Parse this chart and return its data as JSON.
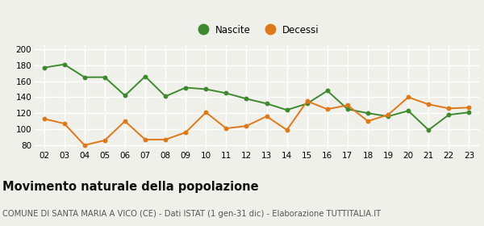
{
  "years": [
    "02",
    "03",
    "04",
    "05",
    "06",
    "07",
    "08",
    "09",
    "10",
    "11",
    "12",
    "13",
    "14",
    "15",
    "16",
    "17",
    "18",
    "19",
    "20",
    "21",
    "22",
    "23"
  ],
  "nascite": [
    177,
    181,
    165,
    165,
    142,
    166,
    141,
    152,
    150,
    145,
    138,
    132,
    124,
    132,
    148,
    125,
    120,
    116,
    123,
    99,
    118,
    121
  ],
  "decessi": [
    113,
    107,
    80,
    86,
    110,
    87,
    87,
    96,
    121,
    101,
    104,
    116,
    99,
    135,
    125,
    130,
    110,
    118,
    140,
    131,
    126,
    127
  ],
  "nascite_color": "#3d8a2e",
  "decessi_color": "#e07818",
  "background_color": "#f0f0eb",
  "grid_color": "#ffffff",
  "ylim": [
    75,
    205
  ],
  "yticks": [
    80,
    100,
    120,
    140,
    160,
    180,
    200
  ],
  "title": "Movimento naturale della popolazione",
  "subtitle": "COMUNE DI SANTA MARIA A VICO (CE) - Dati ISTAT (1 gen-31 dic) - Elaborazione TUTTITALIA.IT",
  "legend_nascite": "Nascite",
  "legend_decessi": "Decessi",
  "title_fontsize": 10.5,
  "subtitle_fontsize": 7.2,
  "tick_fontsize": 7.5,
  "legend_fontsize": 8.5
}
